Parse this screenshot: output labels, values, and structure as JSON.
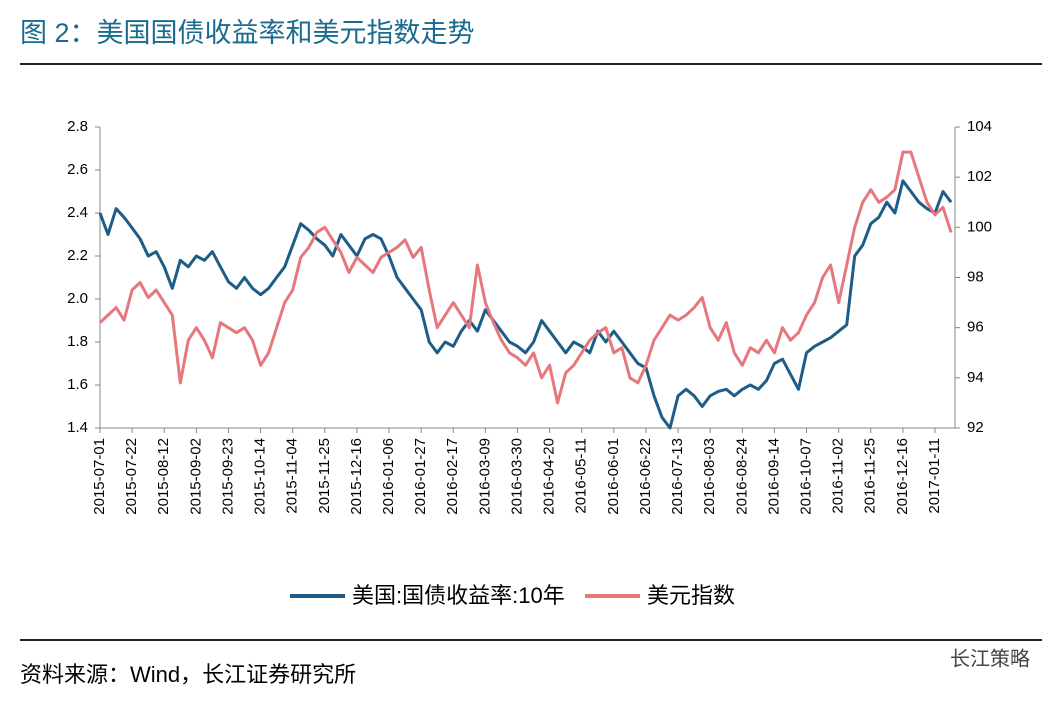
{
  "chart_data": {
    "type": "line",
    "title": "图 2：美国国债收益率和美元指数走势",
    "source": "资料来源：Wind，长江证券研究所",
    "watermark": "长江策略",
    "categories": [
      "2015-07-01",
      null,
      null,
      null,
      "2015-07-22",
      null,
      null,
      null,
      "2015-08-12",
      null,
      null,
      null,
      "2015-09-02",
      null,
      null,
      null,
      "2015-09-23",
      null,
      null,
      null,
      "2015-10-14",
      null,
      null,
      null,
      "2015-11-04",
      null,
      null,
      null,
      "2015-11-25",
      null,
      null,
      null,
      "2015-12-16",
      null,
      null,
      null,
      "2016-01-06",
      null,
      null,
      null,
      "2016-01-27",
      null,
      null,
      null,
      "2016-02-17",
      null,
      null,
      null,
      "2016-03-09",
      null,
      null,
      null,
      "2016-03-30",
      null,
      null,
      null,
      "2016-04-20",
      null,
      null,
      null,
      "2016-05-11",
      null,
      null,
      null,
      "2016-06-01",
      null,
      null,
      null,
      "2016-06-22",
      null,
      null,
      null,
      "2016-07-13",
      null,
      null,
      null,
      "2016-08-03",
      null,
      null,
      null,
      "2016-08-24",
      null,
      null,
      null,
      "2016-09-14",
      null,
      null,
      null,
      "2016-10-07",
      null,
      null,
      null,
      "2016-11-02",
      null,
      null,
      null,
      "2016-11-25",
      null,
      null,
      null,
      "2016-12-16",
      null,
      null,
      null,
      "2017-01-11",
      null,
      null
    ],
    "series": [
      {
        "name": "美国:国债收益率:10年",
        "color": "#1d5d87",
        "axis": "y",
        "values": [
          2.4,
          2.3,
          2.42,
          2.38,
          2.33,
          2.28,
          2.2,
          2.22,
          2.15,
          2.05,
          2.18,
          2.15,
          2.2,
          2.18,
          2.22,
          2.15,
          2.08,
          2.05,
          2.1,
          2.05,
          2.02,
          2.05,
          2.1,
          2.15,
          2.25,
          2.35,
          2.32,
          2.28,
          2.25,
          2.2,
          2.3,
          2.25,
          2.2,
          2.28,
          2.3,
          2.28,
          2.2,
          2.1,
          2.05,
          2.0,
          1.95,
          1.8,
          1.75,
          1.8,
          1.78,
          1.85,
          1.9,
          1.85,
          1.95,
          1.9,
          1.85,
          1.8,
          1.78,
          1.75,
          1.8,
          1.9,
          1.85,
          1.8,
          1.75,
          1.8,
          1.78,
          1.75,
          1.85,
          1.8,
          1.85,
          1.8,
          1.75,
          1.7,
          1.68,
          1.55,
          1.45,
          1.4,
          1.55,
          1.58,
          1.55,
          1.5,
          1.55,
          1.57,
          1.58,
          1.55,
          1.58,
          1.6,
          1.58,
          1.62,
          1.7,
          1.72,
          1.65,
          1.58,
          1.75,
          1.78,
          1.8,
          1.82,
          1.85,
          1.88,
          2.2,
          2.25,
          2.35,
          2.38,
          2.45,
          2.4,
          2.55,
          2.5,
          2.45,
          2.42,
          2.4,
          2.5,
          2.45
        ]
      },
      {
        "name": "美元指数",
        "color": "#e5777d",
        "axis": "y2",
        "values": [
          96.2,
          96.5,
          96.8,
          96.3,
          97.5,
          97.8,
          97.2,
          97.5,
          97.0,
          96.5,
          93.8,
          95.5,
          96.0,
          95.5,
          94.8,
          96.2,
          96.0,
          95.8,
          96.0,
          95.5,
          94.5,
          95.0,
          96.0,
          97.0,
          97.5,
          98.8,
          99.2,
          99.8,
          100.0,
          99.5,
          99.0,
          98.2,
          98.8,
          98.5,
          98.2,
          98.8,
          99.0,
          99.2,
          99.5,
          98.8,
          99.2,
          97.5,
          96.0,
          96.5,
          97.0,
          96.5,
          96.0,
          98.5,
          97.0,
          96.2,
          95.5,
          95.0,
          94.8,
          94.5,
          95.0,
          94.0,
          94.5,
          93.0,
          94.2,
          94.5,
          95.0,
          95.5,
          95.8,
          96.0,
          95.0,
          95.2,
          94.0,
          93.8,
          94.5,
          95.5,
          96.0,
          96.5,
          96.3,
          96.5,
          96.8,
          97.2,
          96.0,
          95.5,
          96.2,
          95.0,
          94.5,
          95.2,
          95.0,
          95.5,
          95.0,
          96.0,
          95.5,
          95.8,
          96.5,
          97.0,
          98.0,
          98.5,
          97.0,
          98.5,
          100.0,
          101.0,
          101.5,
          101.0,
          101.2,
          101.5,
          103.0,
          103.0,
          102.0,
          101.0,
          100.5,
          100.8,
          99.8
        ]
      }
    ],
    "ylim": [
      1.4,
      2.8
    ],
    "yticks": [
      1.4,
      1.6,
      1.8,
      {
        "value": 2,
        "label": "2.0"
      },
      2.2,
      2.4,
      2.6,
      2.8
    ],
    "y2lim": [
      92,
      104
    ],
    "y2ticks": [
      92,
      94,
      96,
      98,
      100,
      102,
      104
    ]
  }
}
